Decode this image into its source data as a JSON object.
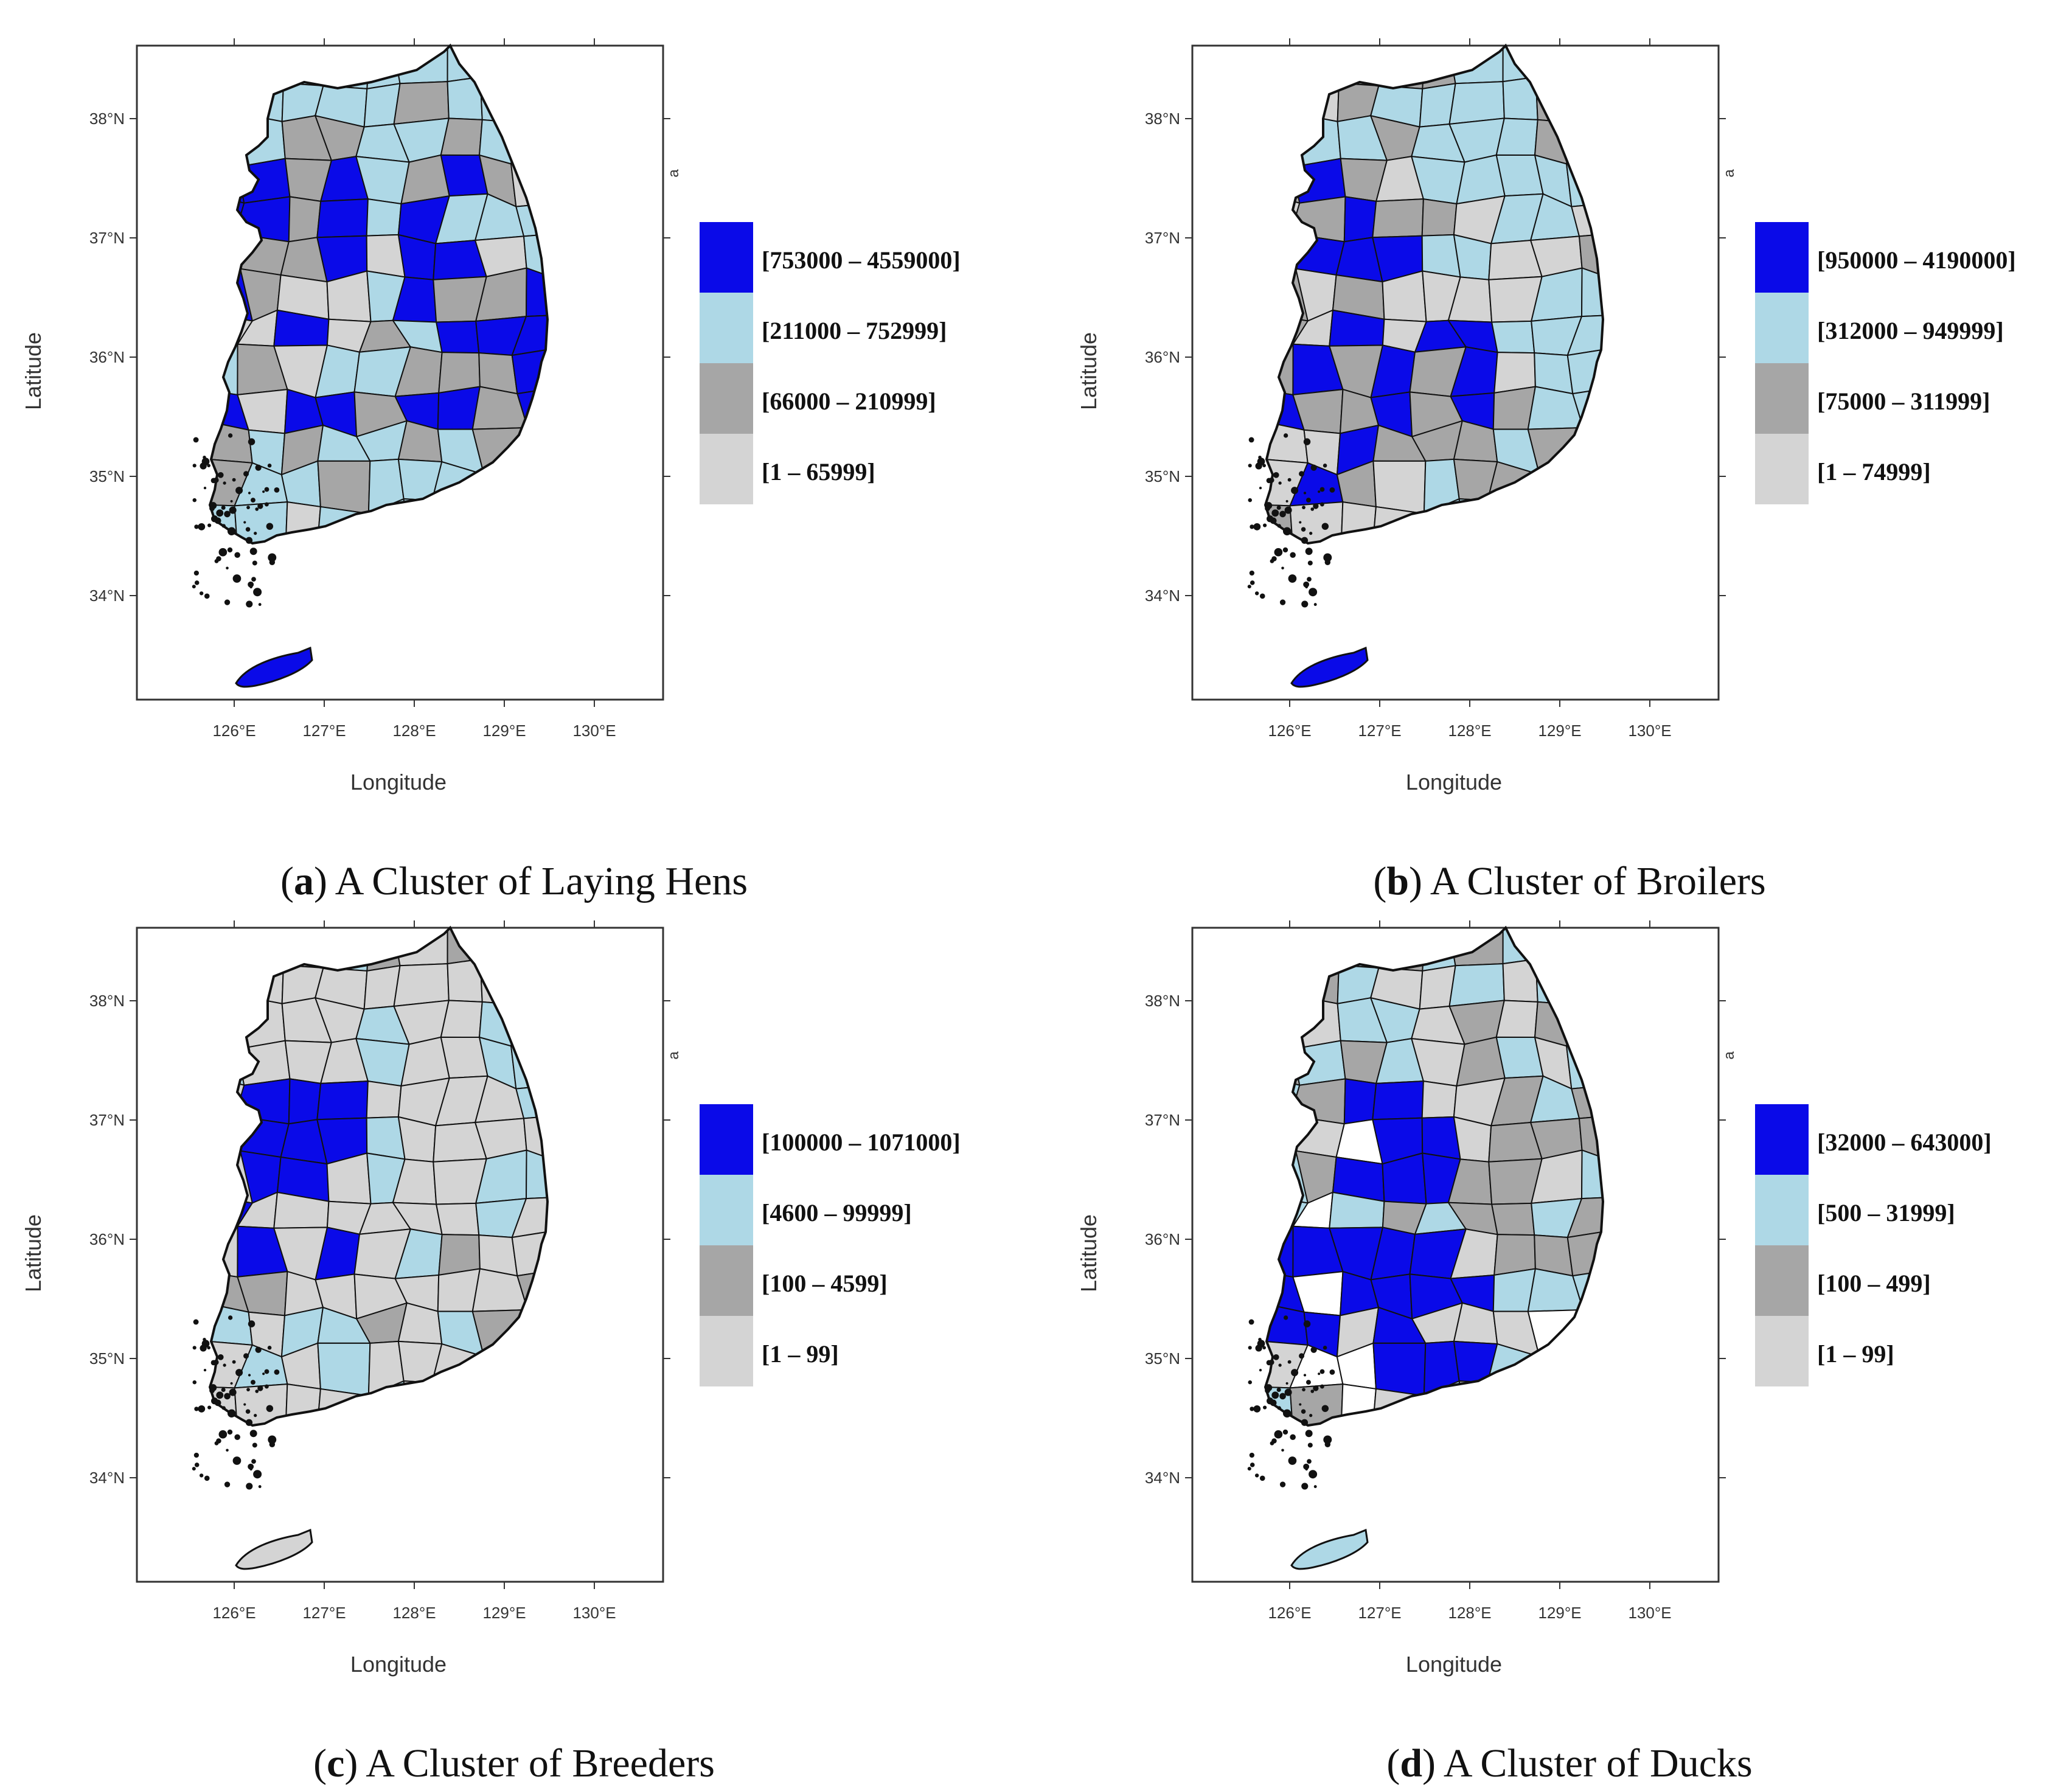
{
  "colors": {
    "class1": "#0a0ae8",
    "class2": "#aed8e6",
    "class3": "#a6a6a6",
    "class4": "#d4d4d4",
    "empty": "#ffffff",
    "frame": "#333333",
    "outline": "#111111"
  },
  "axes": {
    "xlabel": "Longitude",
    "ylabel": "Latitude",
    "xticks": [
      "126°E",
      "127°E",
      "128°E",
      "129°E",
      "130°E"
    ],
    "yticks": [
      "38°N",
      "37°N",
      "36°N",
      "35°N",
      "34°N"
    ],
    "corner_mark": "a"
  },
  "panels": [
    {
      "letter": "a",
      "caption": "A Cluster of Laying Hens",
      "legend": [
        "[753000 – 4559000]",
        "[211000 – 752999]",
        "[66000 – 210999]",
        "[1 – 65999]"
      ],
      "jeju_class": 1
    },
    {
      "letter": "b",
      "caption": "A Cluster of Broilers",
      "legend": [
        "[950000 – 4190000]",
        "[312000 – 949999]",
        "[75000 – 311999]",
        "[1 – 74999]"
      ],
      "jeju_class": 1
    },
    {
      "letter": "c",
      "caption": "A Cluster of Breeders",
      "legend": [
        "[100000 – 1071000]",
        "[4600 – 99999]",
        "[100 – 4599]",
        "[1 – 99]"
      ],
      "jeju_class": 4
    },
    {
      "letter": "d",
      "caption": "A Cluster of Ducks",
      "legend": [
        "[32000 – 643000]",
        "[500 – 31999]",
        "[100 – 499]",
        "[1 – 99]"
      ],
      "jeju_class": 2
    }
  ]
}
